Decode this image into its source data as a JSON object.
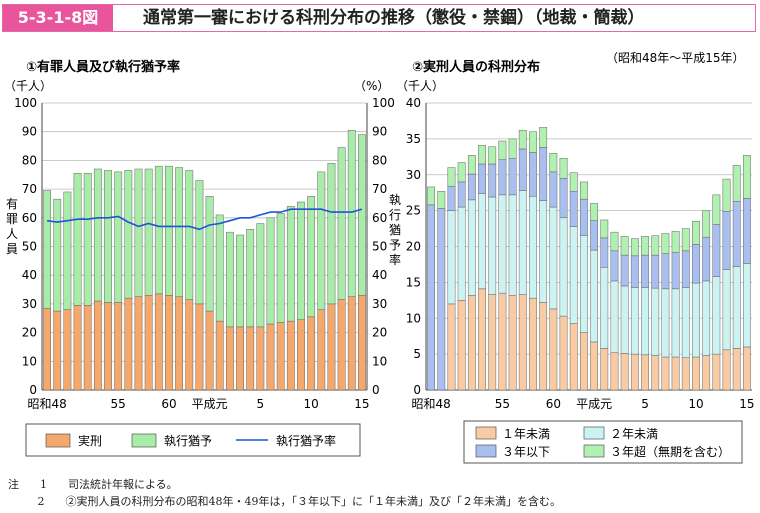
{
  "header": {
    "figure_number": "5-3-1-8図",
    "title": "通常第一審における科刑分布の推移（懲役・禁錮）（地裁・簡裁）"
  },
  "period_note": "（昭和48年～平成15年）",
  "colors": {
    "actual": "#f5a86b",
    "suspended": "#a9ecaa",
    "rate_line": "#1c55d4",
    "lt1": "#f8cba4",
    "lt2": "#cbf3f1",
    "le3": "#a8bff0",
    "gt3": "#b0f0b0",
    "bar_stroke": "#666666",
    "header_pink": "#e8559c"
  },
  "chart_data": [
    {
      "type": "bar",
      "stacked": true,
      "subtitle": "①有罪人員及び執行猶予率",
      "y_unit_left": "（千人）",
      "y_unit_right": "（%）",
      "ylabel_left": "有罪人員",
      "ylabel_right": "執行猶予率",
      "ylim": [
        0,
        100
      ],
      "y_ticks": [
        "0",
        "10",
        "20",
        "30",
        "40",
        "50",
        "60",
        "70",
        "80",
        "90",
        "100"
      ],
      "x_tick_labels": [
        {
          "index": 0,
          "label": "昭和48"
        },
        {
          "index": 7,
          "label": "55"
        },
        {
          "index": 12,
          "label": "60"
        },
        {
          "index": 16,
          "label": "平成元"
        },
        {
          "index": 21,
          "label": "5"
        },
        {
          "index": 26,
          "label": "10"
        },
        {
          "index": 31,
          "label": "15"
        }
      ],
      "series": [
        {
          "name": "実刑",
          "values": [
            28.5,
            27.5,
            28,
            29.5,
            29.5,
            31,
            30.5,
            30.5,
            32,
            32.5,
            33,
            33.5,
            33,
            32.5,
            31.5,
            30,
            27.5,
            24,
            22,
            22,
            22,
            22,
            23,
            23.5,
            24,
            24.5,
            25.5,
            28,
            30,
            31.5,
            32.5,
            33
          ]
        },
        {
          "name": "執行猶予",
          "values": [
            41,
            39,
            41,
            46,
            46,
            46,
            46,
            45.5,
            44.5,
            44.5,
            44,
            44.5,
            45,
            45,
            45,
            43,
            40,
            37,
            33,
            32,
            34,
            36,
            37,
            38,
            40,
            41,
            42,
            48,
            49,
            53,
            58,
            56
          ]
        },
        {
          "name": "執行猶予率",
          "type": "line",
          "values": [
            59,
            58.5,
            59,
            59.5,
            59.5,
            60,
            60,
            60.5,
            58.5,
            57,
            58,
            57,
            57,
            57,
            57,
            56,
            57.5,
            58,
            59,
            60,
            60,
            61,
            62,
            62,
            63,
            63,
            63,
            63,
            62,
            62,
            62,
            63
          ]
        }
      ],
      "legend": [
        "実刑",
        "執行猶予",
        "執行猶予率"
      ]
    },
    {
      "type": "bar",
      "stacked": true,
      "subtitle": "②実刑人員の科刑分布",
      "y_unit_left": "（千人）",
      "ylim": [
        0,
        40
      ],
      "y_ticks": [
        "0",
        "5",
        "10",
        "15",
        "20",
        "25",
        "30",
        "35",
        "40"
      ],
      "x_tick_labels": [
        {
          "index": 0,
          "label": "昭和48"
        },
        {
          "index": 7,
          "label": "55"
        },
        {
          "index": 12,
          "label": "60"
        },
        {
          "index": 16,
          "label": "平成元"
        },
        {
          "index": 21,
          "label": "5"
        },
        {
          "index": 26,
          "label": "10"
        },
        {
          "index": 31,
          "label": "15"
        }
      ],
      "series": [
        {
          "name": "１年未満",
          "values": [
            0,
            0,
            12,
            12.5,
            13.2,
            14.1,
            13.3,
            13.5,
            13.2,
            13.3,
            12.8,
            12.2,
            11.3,
            10.3,
            9.3,
            8,
            6.7,
            5.8,
            5.2,
            5.1,
            5,
            4.9,
            4.8,
            4.6,
            4.6,
            4.5,
            4.6,
            4.8,
            5,
            5.6,
            5.8,
            6
          ]
        },
        {
          "name": "２年未満",
          "values": [
            0,
            0,
            13,
            13,
            13.3,
            13.3,
            13.6,
            13.7,
            14,
            14.5,
            14.2,
            14.2,
            14.2,
            13.7,
            13.5,
            13.5,
            12.8,
            11.3,
            10,
            9.4,
            9.3,
            9.4,
            9.4,
            9.5,
            9.5,
            9.8,
            10.3,
            10.4,
            10.8,
            11.2,
            11.4,
            11.6
          ]
        },
        {
          "name": "３年以下",
          "values": [
            25.8,
            25.3,
            3.4,
            3.5,
            3.6,
            4.1,
            4.6,
            4.9,
            5.1,
            5.8,
            6.1,
            7.4,
            4.9,
            5.5,
            4.9,
            5.1,
            4.1,
            4.1,
            4.2,
            4.3,
            4.4,
            4.5,
            4.6,
            4.9,
            5.1,
            5.1,
            5.4,
            6.1,
            7.3,
            8.1,
            9.1,
            9.1
          ]
        },
        {
          "name": "３年超（無期を含む）",
          "values": [
            2.5,
            2.4,
            2.6,
            2.7,
            2.6,
            2.6,
            2.4,
            2.6,
            2.7,
            2.6,
            2.9,
            2.8,
            2.6,
            2.8,
            2.6,
            2.4,
            2.4,
            2.5,
            2.6,
            2.6,
            2.4,
            2.6,
            2.7,
            2.8,
            2.9,
            3.1,
            3.2,
            3.7,
            4.1,
            4.5,
            5,
            6
          ]
        }
      ],
      "legend": [
        "１年未満",
        "２年未満",
        "３年以下",
        "３年超（無期を含む）"
      ]
    }
  ],
  "notes": [
    {
      "prefix": "注",
      "num": "1",
      "text": "司法統計年報による。"
    },
    {
      "prefix": "",
      "num": "2",
      "text": "②実刑人員の科刑分布の昭和48年・49年は，「３年以下」に「１年未満」及び「２年未満」を含む。"
    }
  ]
}
